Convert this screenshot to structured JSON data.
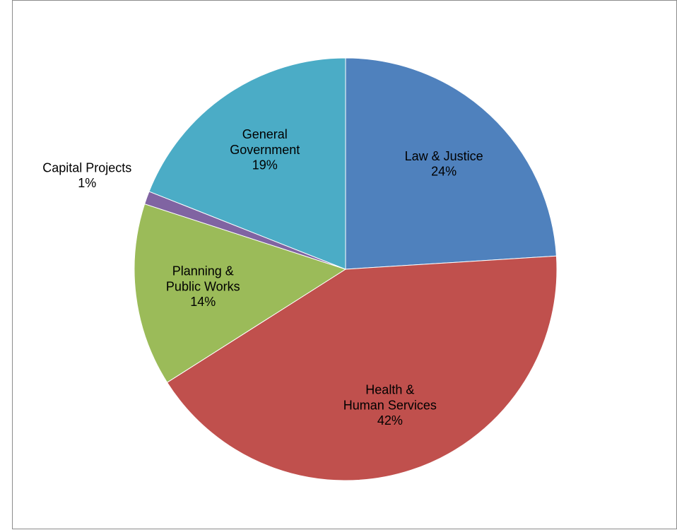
{
  "chart_data": {
    "type": "pie",
    "categories": [
      "Law & Justice",
      "Health &\nHuman Services",
      "Planning &\nPublic Works",
      "Capital Projects",
      "General\nGovernment"
    ],
    "values": [
      24,
      42,
      14,
      1,
      19
    ],
    "value_labels": [
      "24%",
      "42%",
      "14%",
      "1%",
      "19%"
    ],
    "colors": [
      "#4f81bd",
      "#c0504d",
      "#9bbb59",
      "#8064a2",
      "#4bacc6"
    ]
  }
}
